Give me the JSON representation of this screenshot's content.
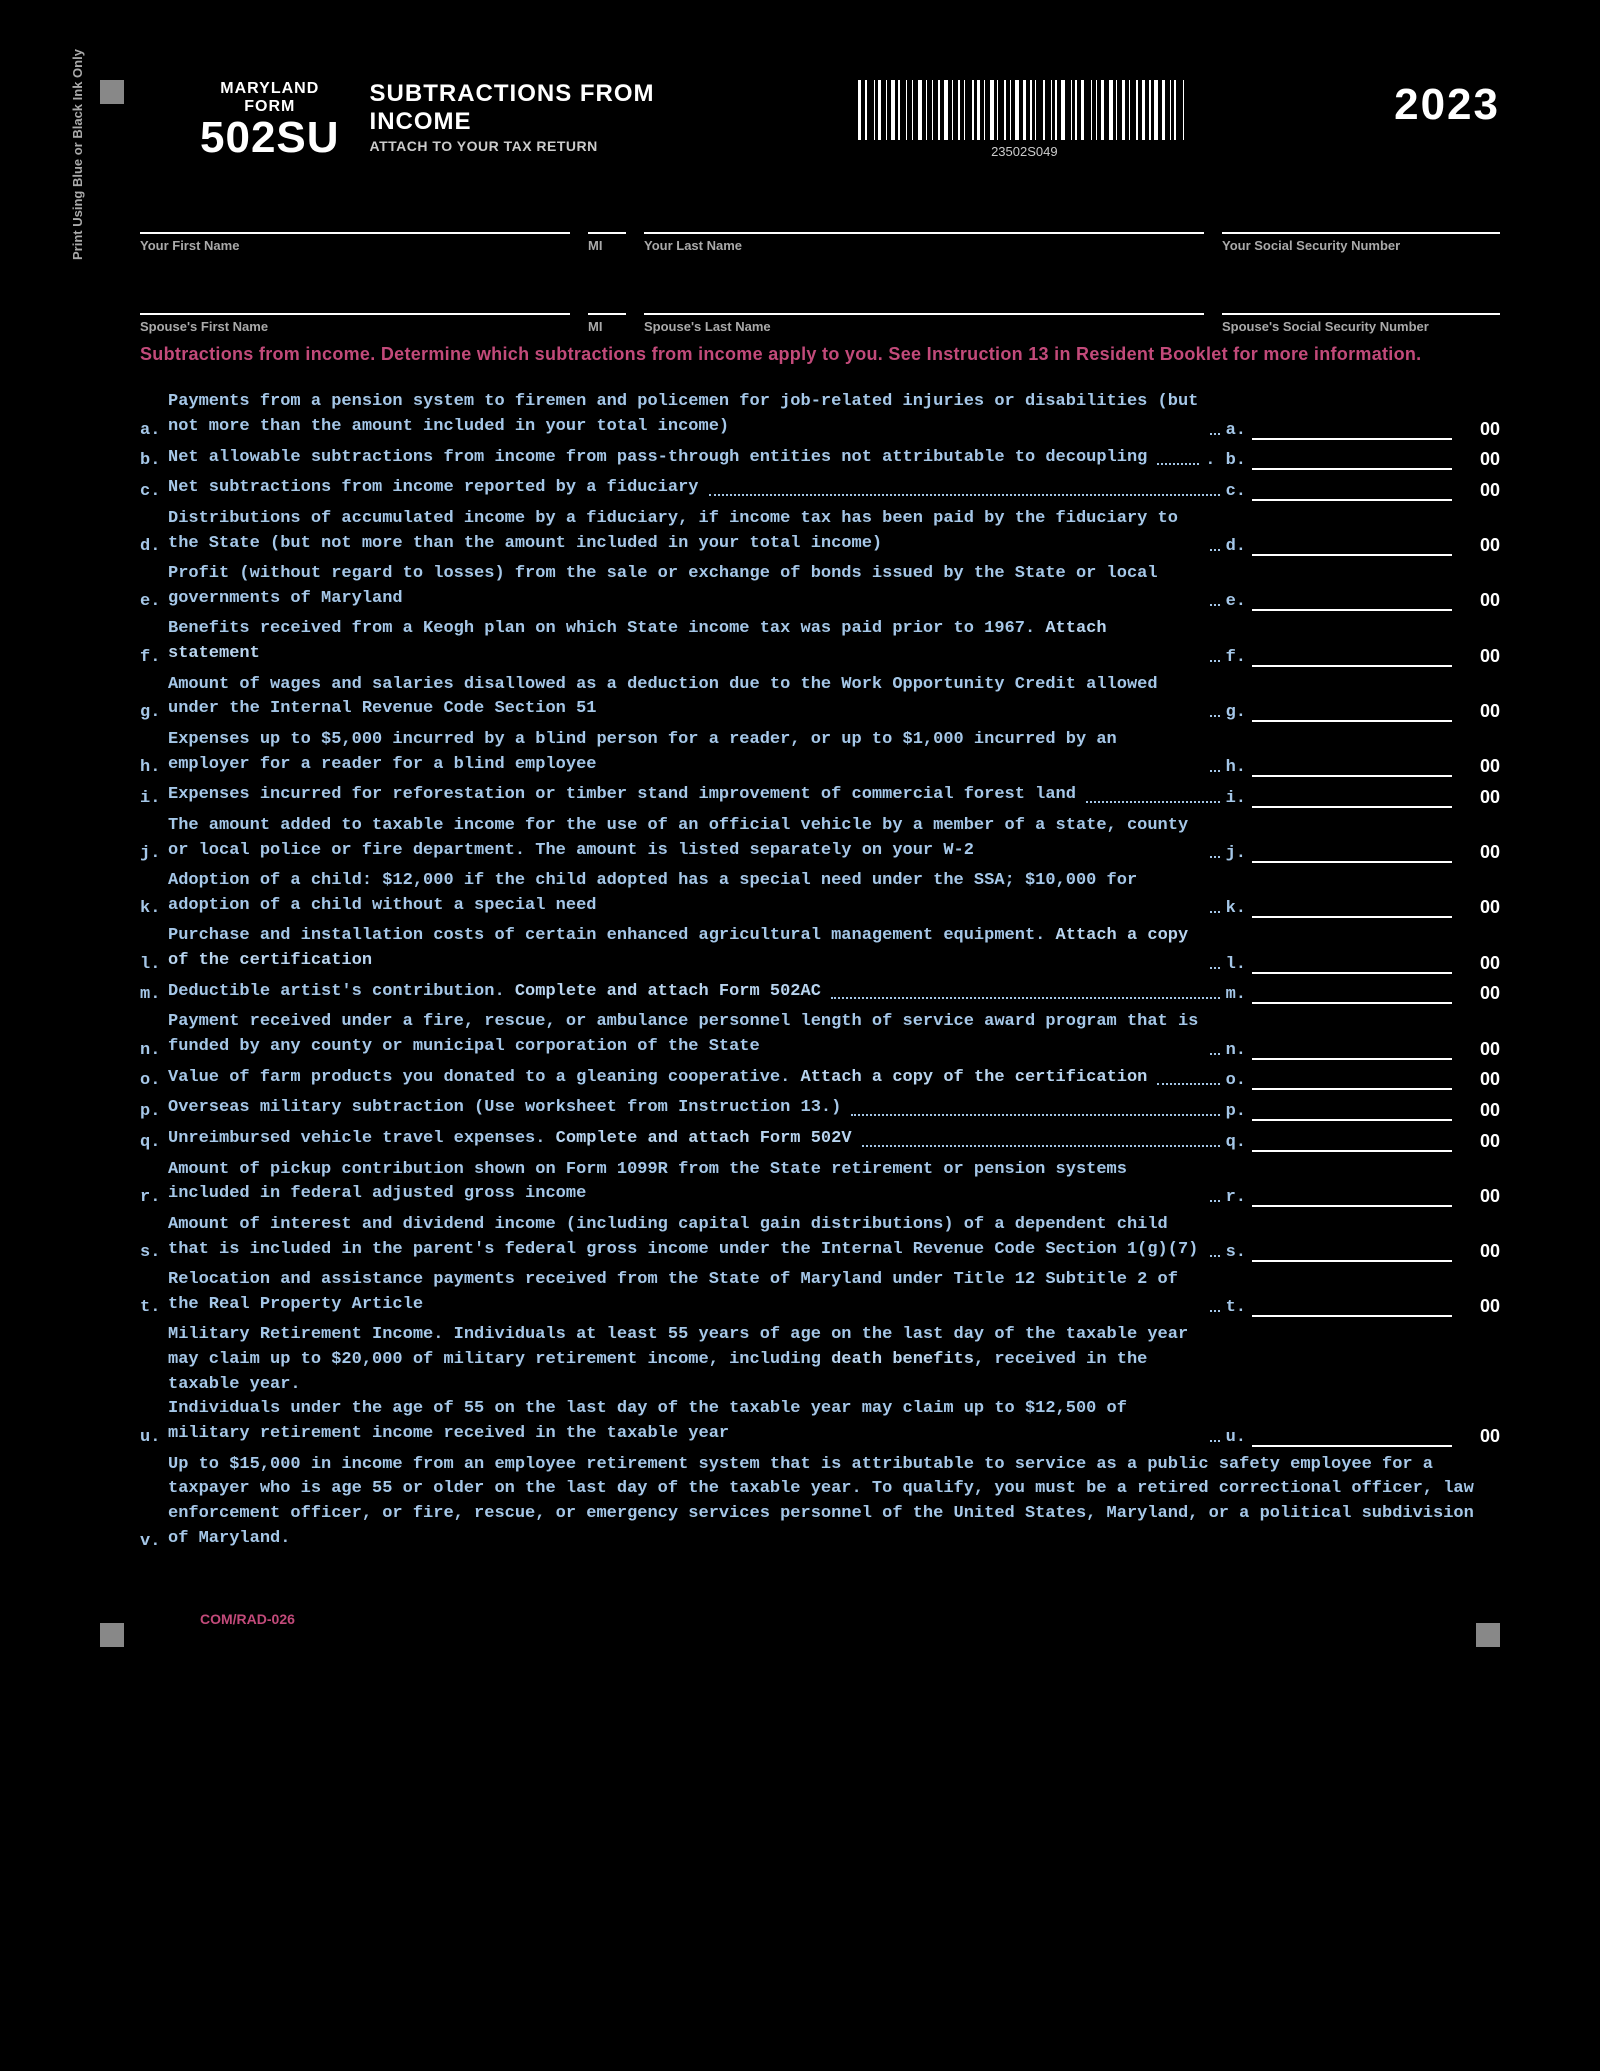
{
  "vertical_note": "Print Using Blue or Black Ink Only",
  "header": {
    "maryland": "MARYLAND",
    "form": "FORM",
    "form_no": "502SU",
    "title_l1": "SUBTRACTIONS FROM",
    "title_l2": "INCOME",
    "attach": "ATTACH TO YOUR TAX RETURN",
    "barcode_label": "23502S049",
    "year": "2023"
  },
  "name_labels": {
    "first": "Your First Name",
    "mi": "MI",
    "last": "Your Last Name",
    "ssn": "Your Social Security Number",
    "sfirst": "Spouse's First Name",
    "smi": "MI",
    "slast": "Spouse's Last Name",
    "sssn": "Spouse's Social Security Number"
  },
  "instruction": "Subtractions from income. Determine which subtractions from income apply to you. See Instruction 13 in Resident Booklet for more information.",
  "items": [
    {
      "l": "a.",
      "t": "Payments from a pension system to firemen and policemen for job-related injuries or disabilities (but not more than the amount included in your total income)",
      "s": "a.",
      "a": "00"
    },
    {
      "l": "b.",
      "t": "Net allowable subtractions from income from pass-through entities not attributable to decoupling",
      "s": ". b.",
      "a": "00"
    },
    {
      "l": "c.",
      "t": "Net subtractions from income reported by a fiduciary",
      "s": "c.",
      "a": "00"
    },
    {
      "l": "d.",
      "t": "Distributions of accumulated income by a fiduciary, if income tax has been paid by the fiduciary to the State (but not more than the amount included in your total income)",
      "s": "d.",
      "a": "00"
    },
    {
      "l": "e.",
      "t": "Profit (without regard to losses) from the sale or exchange of bonds issued by the State or local governments of Maryland",
      "s": "e.",
      "a": "00"
    },
    {
      "l": "f.",
      "t": "Benefits received from a Keogh plan on which State income tax was paid prior to 1967. <span class=\"bold\">Attach statement</span>",
      "s": "f.",
      "a": "00"
    },
    {
      "l": "g.",
      "t": "Amount of wages and salaries disallowed as a deduction due to the Work Opportunity Credit allowed under the Internal Revenue Code Section 51",
      "s": "g.",
      "a": "00"
    },
    {
      "l": "h.",
      "t": "Expenses up to $5,000 incurred by a blind person for a reader, or up to $1,000 incurred by an employer for a reader for a blind employee",
      "s": "h.",
      "a": "00"
    },
    {
      "l": "i.",
      "t": "Expenses incurred for reforestation or timber stand improvement of commercial forest land",
      "s": "i.",
      "a": "00"
    },
    {
      "l": "j.",
      "t": "The amount added to taxable income for the use of an official vehicle by a member of a state, county or local police or fire department. The amount is listed separately on your W-2",
      "s": "j.",
      "a": "00"
    },
    {
      "l": "k.",
      "t": "Adoption of a child: $12,000 if the child adopted has a special need under the SSA; $10,000 for adoption of a child without a special need",
      "s": "k.",
      "a": "00"
    },
    {
      "l": "l.",
      "t": "Purchase and installation costs of certain enhanced agricultural management equipment. <span class=\"bold\">Attach a copy of the certification</span>",
      "s": "l.",
      "a": "00"
    },
    {
      "l": "m.",
      "t": "Deductible artist's contribution. <span class=\"bold\">Complete and attach Form 502AC</span>",
      "s": "m.",
      "a": "00"
    },
    {
      "l": "n.",
      "t": "Payment received under a fire, rescue, or ambulance personnel length of service award program that is funded by any county or municipal corporation of the State",
      "s": "n.",
      "a": "00"
    },
    {
      "l": "o.",
      "t": "Value of farm products you donated to a gleaning cooperative. <span class=\"bold\">Attach a copy of the certification</span>",
      "s": "o.",
      "a": "00"
    },
    {
      "l": "p.",
      "t": "Overseas military subtraction (Use worksheet from Instruction 13.)",
      "s": "p.",
      "a": "00"
    },
    {
      "l": "q.",
      "t": "Unreimbursed vehicle travel expenses. <span class=\"bold\">Complete and attach Form 502V</span>",
      "s": "q.",
      "a": "00"
    },
    {
      "l": "r.",
      "t": "Amount of pickup contribution shown on Form 1099R from the State retirement or pension systems included in federal adjusted gross income",
      "s": "r.",
      "a": "00"
    },
    {
      "l": "s.",
      "t": "Amount of interest and dividend income (including capital gain distributions) of a dependent child that is included in the parent's federal gross income under the Internal Revenue Code Section 1(g)(7)",
      "s": "s.",
      "a": "00"
    },
    {
      "l": "t.",
      "t": "Relocation and assistance payments received from the State of Maryland under Title 12 Subtitle 2 of the Real Property Article",
      "s": "t.",
      "a": "00"
    },
    {
      "l": "u.",
      "t": "Military Retirement Income. Individuals at least 55 years of age on the last day of the taxable year may claim up to $20,000 of military retirement income, including <span class=\"bold\">death benefits</span>, received in the taxable year.<br>Individuals under the age of 55 on the last day of the taxable year may claim up to $12,500 of military retirement income received in the taxable year",
      "s": "u.",
      "a": "00"
    },
    {
      "l": "v.",
      "t": "Up to $15,000 in income from an employee retirement system that is attributable to service as a public safety employee for a taxpayer who is age 55 or older on the last day of the taxable year. To qualify, you must be a retired correctional officer, law enforcement officer, or fire, rescue, or emergency services personnel of the United States, Maryland, or a political subdivision of Maryland.",
      "noamt": true
    }
  ],
  "footer": "COM/RAD-026",
  "barcode_widths": [
    3,
    1,
    2,
    4,
    1,
    1,
    3,
    2,
    1,
    1,
    4,
    1,
    2,
    3,
    1,
    2,
    1,
    3,
    4,
    1,
    1,
    2,
    1,
    3,
    2,
    1,
    4,
    1,
    1,
    3,
    2,
    1,
    1,
    4,
    2,
    1,
    3,
    1,
    1,
    2,
    4,
    1,
    1,
    3,
    2,
    1,
    1,
    2,
    4,
    1,
    3,
    1,
    2,
    1,
    1,
    4,
    2,
    3,
    1,
    1,
    2,
    1,
    4,
    3,
    1,
    1,
    2,
    1,
    3,
    4,
    1,
    2,
    1,
    1,
    3,
    2,
    4,
    1,
    1,
    2,
    3,
    1,
    1,
    4,
    2,
    1,
    3,
    1,
    2,
    1,
    4,
    1,
    3,
    2,
    1,
    1,
    2,
    4,
    1,
    3
  ]
}
